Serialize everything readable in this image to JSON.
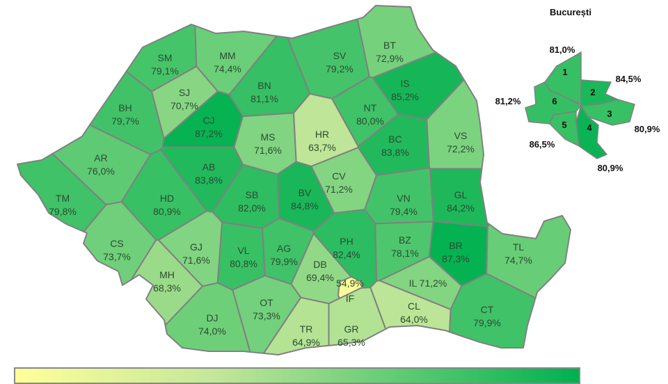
{
  "inset": {
    "title": "București"
  },
  "counties": [
    {
      "code": "SM",
      "value": "79,1%"
    },
    {
      "code": "MM",
      "value": "74,4%"
    },
    {
      "code": "BT",
      "value": "72,9%"
    },
    {
      "code": "SV",
      "value": "79,2%"
    },
    {
      "code": "SJ",
      "value": "70,7%"
    },
    {
      "code": "BN",
      "value": "81,1%"
    },
    {
      "code": "IS",
      "value": "85,2%"
    },
    {
      "code": "BH",
      "value": "79,7%"
    },
    {
      "code": "CJ",
      "value": "87,2%"
    },
    {
      "code": "NT",
      "value": "80,0%"
    },
    {
      "code": "MS",
      "value": "71,6%"
    },
    {
      "code": "HR",
      "value": "63,7%"
    },
    {
      "code": "BC",
      "value": "83,8%"
    },
    {
      "code": "VS",
      "value": "72,2%"
    },
    {
      "code": "AR",
      "value": "76,0%"
    },
    {
      "code": "AB",
      "value": "83,8%"
    },
    {
      "code": "TM",
      "value": "79,8%"
    },
    {
      "code": "HD",
      "value": "80,9%"
    },
    {
      "code": "SB",
      "value": "82,0%"
    },
    {
      "code": "BV",
      "value": "84,8%"
    },
    {
      "code": "CV",
      "value": "71,2%"
    },
    {
      "code": "VN",
      "value": "79,4%"
    },
    {
      "code": "GL",
      "value": "84,2%"
    },
    {
      "code": "CS",
      "value": "73,7%"
    },
    {
      "code": "GJ",
      "value": "71,6%"
    },
    {
      "code": "VL",
      "value": "80,8%"
    },
    {
      "code": "AG",
      "value": "79,9%"
    },
    {
      "code": "PH",
      "value": "82,4%"
    },
    {
      "code": "BZ",
      "value": "78,1%"
    },
    {
      "code": "BR",
      "value": "87,3%"
    },
    {
      "code": "TL",
      "value": "74,7%"
    },
    {
      "code": "DB",
      "value": "69,4%"
    },
    {
      "code": "MH",
      "value": "68,3%"
    },
    {
      "code": "IL",
      "value": "71,2%"
    },
    {
      "code": "IF",
      "value": "54,9%"
    },
    {
      "code": "CL",
      "value": "64,0%"
    },
    {
      "code": "DJ",
      "value": "74,0%"
    },
    {
      "code": "OT",
      "value": "73,3%"
    },
    {
      "code": "TR",
      "value": "64,9%"
    },
    {
      "code": "GR",
      "value": "65,3%"
    },
    {
      "code": "CT",
      "value": "79,9%"
    }
  ],
  "bucharest_sectors": [
    {
      "number": "1",
      "value": "81,0%"
    },
    {
      "number": "2",
      "value": "84,5%"
    },
    {
      "number": "3",
      "value": "80,9%"
    },
    {
      "number": "4",
      "value": "86,5%"
    },
    {
      "number": "5",
      "value": "80,9%"
    },
    {
      "number": "6",
      "value": "81,2%"
    }
  ],
  "colors": {
    "low": "#ffff99",
    "mid": "#c4e79a",
    "high": "#00b050",
    "border": "#808080",
    "label": "#2b4a30"
  },
  "legend": {
    "type": "gradient",
    "from": "#ffff99",
    "to": "#00b050"
  }
}
